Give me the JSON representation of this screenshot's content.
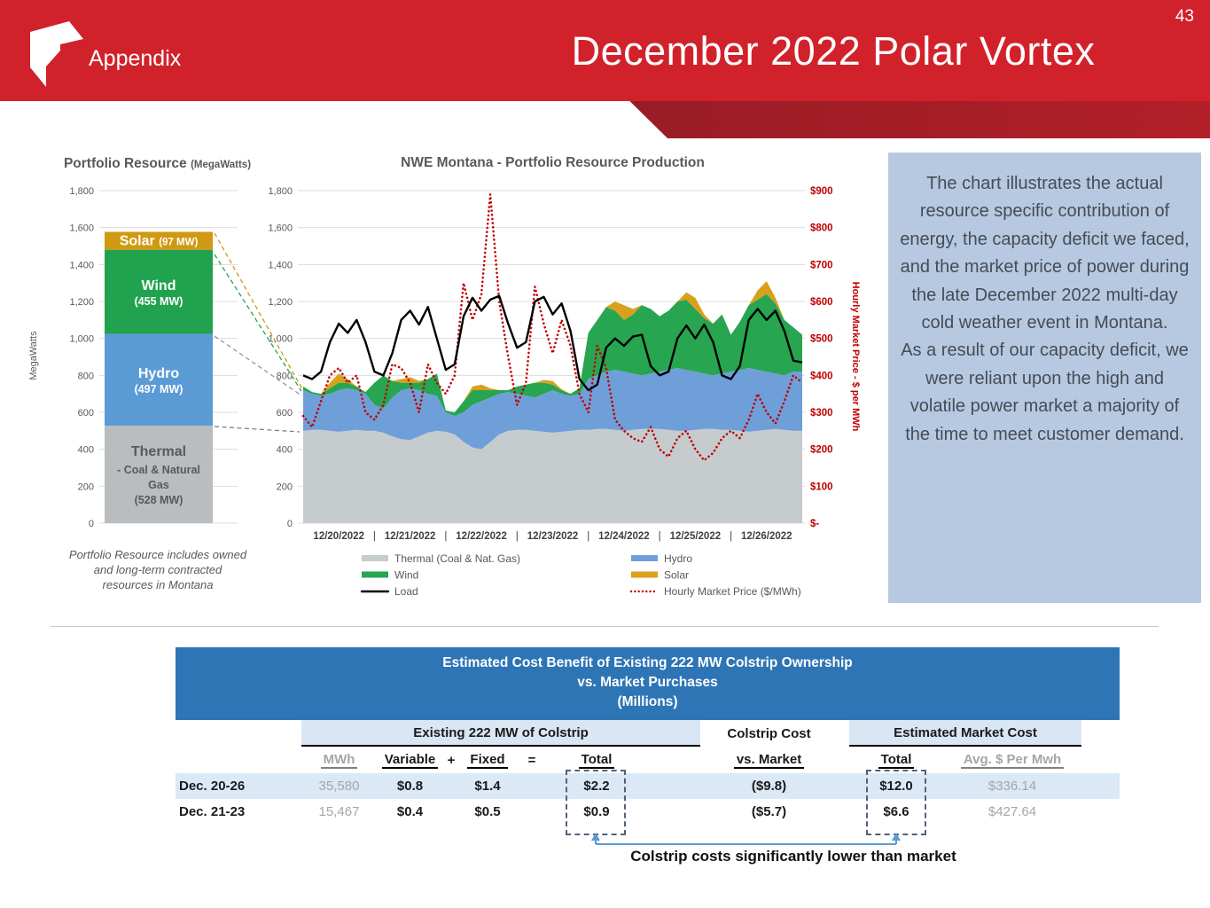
{
  "header": {
    "page_number": "43",
    "tab": "Appendix",
    "title": "December 2022 Polar Vortex"
  },
  "note_box": {
    "p1": "The chart illustrates the actual resource specific contribution of energy, the capacity deficit we faced, and the market price of power during the late December 2022 multi-day cold weather event in Montana.",
    "p2": "As a result of our capacity deficit, we were reliant upon the high and volatile power market a majority of the time to meet customer demand."
  },
  "chart_data": [
    {
      "id": "portfolio-resource",
      "type": "bar",
      "title": "Portfolio Resource",
      "title_unit": "(MegaWatts)",
      "ylabel": "MegaWatts",
      "ylim": [
        0,
        1800
      ],
      "ytick_step": 200,
      "yticks": [
        "0",
        "200",
        "400",
        "600",
        "800",
        "1,000",
        "1,200",
        "1,400",
        "1,600",
        "1,800"
      ],
      "footnote": [
        "Portfolio Resource includes owned",
        "and long-term contracted",
        "resources in Montana"
      ],
      "segments": [
        {
          "name": "Thermal",
          "detail_lines": [
            "- Coal & Natural",
            "Gas",
            "(528 MW)"
          ],
          "value": 528,
          "color": "#b9bdc0",
          "text_color": "#595959"
        },
        {
          "name": "Hydro",
          "detail_lines": [
            "(497 MW)"
          ],
          "value": 497,
          "color": "#5b9bd5",
          "text_color": "#ffffff"
        },
        {
          "name": "Wind",
          "detail_lines": [
            "(455 MW)"
          ],
          "value": 455,
          "color": "#21a24e",
          "text_color": "#ffffff"
        },
        {
          "name": "Solar",
          "detail_inline": "(97 MW)",
          "value": 97,
          "color": "#cf9a12",
          "text_color": "#ffffff"
        }
      ]
    },
    {
      "id": "production",
      "type": "area",
      "title": "NWE Montana - Portfolio Resource Production",
      "x_hours_step": 3,
      "categories": [
        "12/20/2022",
        "12/21/2022",
        "12/22/2022",
        "12/23/2022",
        "12/24/2022",
        "12/25/2022",
        "12/26/2022"
      ],
      "x_separator": "|",
      "left_ylim": [
        0,
        1800
      ],
      "left_yticks": [
        "0",
        "200",
        "400",
        "600",
        "800",
        "1,000",
        "1,200",
        "1,400",
        "1,600",
        "1,800"
      ],
      "right_ylim": [
        0,
        900
      ],
      "right_yticks": [
        "$-",
        "$100",
        "$200",
        "$300",
        "$400",
        "$500",
        "$600",
        "$700",
        "$800",
        "$900"
      ],
      "right_axis_label": "Hourly Market Price - $ per MWh",
      "legend": {
        "col1": [
          "Thermal (Coal & Nat. Gas)",
          "Wind",
          "Load"
        ],
        "col2": [
          "Hydro",
          "Solar",
          "Hourly Market Price ($/MWh)"
        ]
      },
      "series": [
        {
          "name": "Thermal (Coal & Nat. Gas)",
          "type": "area",
          "color": "#c6cbce",
          "values": [
            500,
            505,
            505,
            500,
            495,
            500,
            505,
            500,
            500,
            490,
            470,
            455,
            450,
            470,
            490,
            500,
            495,
            480,
            440,
            410,
            400,
            440,
            480,
            500,
            505,
            505,
            500,
            495,
            490,
            495,
            500,
            505,
            505,
            510,
            510,
            505,
            500,
            505,
            510,
            510,
            510,
            505,
            500,
            500,
            505,
            510,
            510,
            505,
            505,
            500,
            495,
            500,
            505,
            510,
            505,
            500,
            500
          ]
        },
        {
          "name": "Hydro",
          "type": "area",
          "color": "#6f9fd8",
          "values": [
            220,
            195,
            185,
            200,
            225,
            230,
            215,
            200,
            140,
            130,
            210,
            265,
            280,
            250,
            210,
            190,
            105,
            100,
            160,
            230,
            260,
            240,
            220,
            210,
            195,
            185,
            180,
            205,
            230,
            205,
            190,
            195,
            275,
            290,
            310,
            325,
            320,
            305,
            290,
            300,
            310,
            325,
            340,
            330,
            315,
            300,
            290,
            305,
            315,
            330,
            345,
            330,
            315,
            300,
            295,
            320,
            320
          ]
        },
        {
          "name": "Wind",
          "type": "area",
          "color": "#27a551",
          "values": [
            20,
            10,
            10,
            30,
            40,
            30,
            20,
            10,
            120,
            180,
            90,
            40,
            30,
            40,
            80,
            120,
            10,
            20,
            60,
            80,
            60,
            40,
            20,
            10,
            40,
            60,
            80,
            60,
            30,
            20,
            10,
            30,
            250,
            300,
            350,
            320,
            280,
            320,
            380,
            350,
            300,
            320,
            360,
            380,
            340,
            300,
            280,
            320,
            200,
            260,
            340,
            380,
            420,
            380,
            300,
            240,
            200
          ]
        },
        {
          "name": "Solar",
          "type": "area",
          "color": "#d9a01c",
          "values": [
            0,
            0,
            0,
            30,
            50,
            20,
            0,
            0,
            0,
            0,
            0,
            20,
            30,
            10,
            0,
            0,
            0,
            0,
            0,
            20,
            30,
            10,
            0,
            0,
            0,
            0,
            0,
            15,
            20,
            5,
            0,
            0,
            0,
            0,
            0,
            50,
            80,
            30,
            0,
            0,
            0,
            0,
            0,
            40,
            60,
            20,
            0,
            0,
            0,
            0,
            0,
            50,
            70,
            30,
            0,
            0,
            0
          ]
        },
        {
          "name": "Load",
          "type": "line",
          "color": "#000000",
          "values": [
            800,
            780,
            820,
            980,
            1080,
            1030,
            1100,
            980,
            820,
            800,
            920,
            1100,
            1150,
            1075,
            1170,
            1000,
            830,
            860,
            1120,
            1220,
            1150,
            1210,
            1230,
            1080,
            950,
            980,
            1200,
            1225,
            1130,
            1190,
            1040,
            780,
            720,
            750,
            950,
            1000,
            960,
            1010,
            1020,
            850,
            800,
            820,
            1000,
            1070,
            1000,
            1075,
            980,
            800,
            780,
            850,
            1100,
            1160,
            1100,
            1150,
            1040,
            880,
            870
          ]
        },
        {
          "name": "Hourly Market Price ($/MWh)",
          "type": "dotted-line",
          "color": "#c00000",
          "axis": "right",
          "values": [
            290,
            260,
            330,
            400,
            420,
            380,
            400,
            300,
            280,
            320,
            430,
            420,
            380,
            300,
            430,
            380,
            350,
            400,
            650,
            550,
            620,
            890,
            600,
            450,
            320,
            380,
            640,
            540,
            460,
            550,
            480,
            350,
            300,
            480,
            420,
            280,
            250,
            230,
            220,
            260,
            200,
            180,
            230,
            250,
            200,
            170,
            190,
            230,
            250,
            230,
            280,
            350,
            300,
            270,
            330,
            400,
            380
          ]
        }
      ]
    }
  ],
  "table": {
    "title_lines": [
      "Estimated Cost Benefit of Existing 222 MW Colstrip Ownership",
      "vs. Market Purchases",
      "(Millions)"
    ],
    "group_headers": {
      "existing": "Existing 222 MW of Colstrip",
      "colstrip_cost": "Colstrip Cost",
      "market": "Estimated Market Cost"
    },
    "col_headers": {
      "mwh": "MWh",
      "variable": "Variable",
      "plus": "+",
      "fixed": "Fixed",
      "equals": "=",
      "total": "Total",
      "vs_market": "vs. Market",
      "m_total": "Total",
      "avg": "Avg. $ Per Mwh"
    },
    "rows": [
      {
        "label": "Dec. 20-26",
        "mwh": "35,580",
        "variable": "$0.8",
        "fixed": "$1.4",
        "total": "$2.2",
        "vs_market": "($9.8)",
        "m_total": "$12.0",
        "avg": "$336.14"
      },
      {
        "label": "Dec. 21-23",
        "mwh": "15,467",
        "variable": "$0.4",
        "fixed": "$0.5",
        "total": "$0.9",
        "vs_market": "($5.7)",
        "m_total": "$6.6",
        "avg": "$427.64"
      }
    ]
  },
  "annotation": {
    "text": "Colstrip costs significantly lower than market"
  }
}
